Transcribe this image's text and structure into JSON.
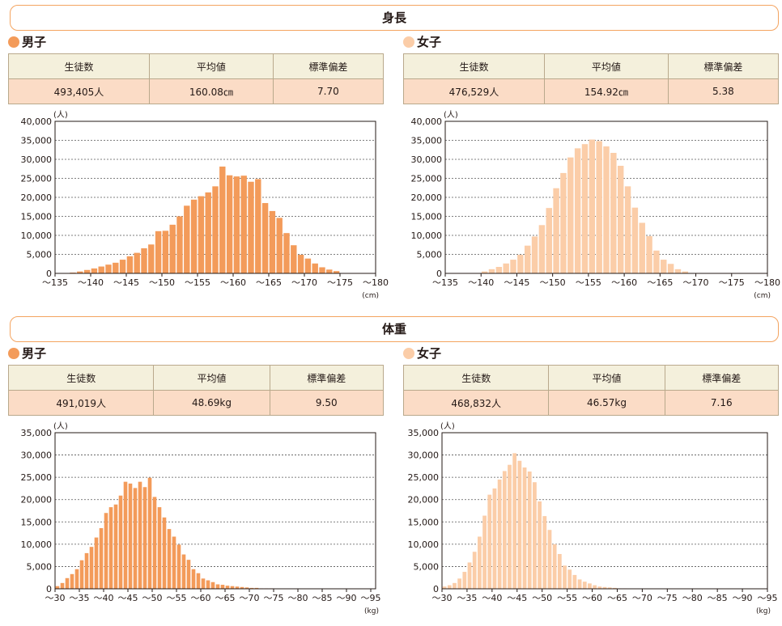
{
  "colors": {
    "male": "#f39b5a",
    "female": "#fbcda8",
    "border": "#f4a460"
  },
  "height_section": {
    "title": "身長"
  },
  "weight_section": {
    "title": "体重"
  },
  "stats_headers": [
    "生徒数",
    "平均値",
    "標準偏差"
  ],
  "height_male": {
    "label": "男子",
    "count": "493,405人",
    "mean": "160.08㎝",
    "sd": "7.70"
  },
  "height_female": {
    "label": "女子",
    "count": "476,529人",
    "mean": "154.92㎝",
    "sd": "5.38"
  },
  "weight_male": {
    "label": "男子",
    "count": "491,019人",
    "mean": "48.69kg",
    "sd": "9.50"
  },
  "weight_female": {
    "label": "女子",
    "count": "468,832人",
    "mean": "46.57kg",
    "sd": "7.16"
  },
  "chart_data": [
    {
      "type": "bar",
      "title": "",
      "ylabel": "(人)",
      "xlabel": "(cm)",
      "x_start": 135,
      "ylim": [
        0,
        40000
      ],
      "yticks": [
        "0",
        "5,000",
        "10,000",
        "15,000",
        "20,000",
        "25,000",
        "30,000",
        "35,000",
        "40,000"
      ],
      "xticks": [
        "～135",
        "～140",
        "～145",
        "～150",
        "～155",
        "～160",
        "～165",
        "～170",
        "～175",
        "～180"
      ],
      "values": [
        0,
        0,
        200,
        500,
        900,
        1300,
        1800,
        2300,
        2800,
        3600,
        4500,
        5400,
        6600,
        7600,
        11100,
        11200,
        12800,
        15000,
        17800,
        19400,
        20300,
        21300,
        22900,
        28100,
        25800,
        25500,
        25700,
        24100,
        24800,
        18500,
        16400,
        14600,
        10600,
        7400,
        4900,
        3900,
        2600,
        1600,
        1000,
        600,
        0,
        0,
        0,
        0,
        0
      ],
      "color": "#f39b5a"
    },
    {
      "type": "bar",
      "title": "",
      "ylabel": "(人)",
      "xlabel": "(cm)",
      "x_start": 135,
      "ylim": [
        0,
        40000
      ],
      "yticks": [
        "0",
        "5,000",
        "10,000",
        "15,000",
        "20,000",
        "25,000",
        "30,000",
        "35,000",
        "40,000"
      ],
      "xticks": [
        "～135",
        "～140",
        "～145",
        "～150",
        "～155",
        "～160",
        "～165",
        "～170",
        "～175",
        "～180"
      ],
      "values": [
        0,
        0,
        0,
        0,
        0,
        500,
        1100,
        1700,
        2600,
        3600,
        4900,
        7300,
        9700,
        12700,
        17200,
        22400,
        26400,
        30500,
        32900,
        34000,
        35200,
        34800,
        33400,
        31700,
        28300,
        22900,
        17300,
        13300,
        9800,
        6000,
        3600,
        2500,
        1100,
        500,
        0,
        0,
        0,
        0,
        0,
        0,
        0,
        0,
        0,
        0,
        0
      ],
      "color": "#fbcda8"
    },
    {
      "type": "bar",
      "title": "",
      "ylabel": "(人)",
      "xlabel": "(kg)",
      "x_start": 30,
      "ylim": [
        0,
        35000
      ],
      "yticks": [
        "0",
        "5,000",
        "10,000",
        "15,000",
        "20,000",
        "25,000",
        "30,000",
        "35,000"
      ],
      "xticks": [
        "～30",
        "～35",
        "～40",
        "～45",
        "～50",
        "～55",
        "～60",
        "～65",
        "～70",
        "～75",
        "～80",
        "～85",
        "～90",
        "～95"
      ],
      "values": [
        600,
        1300,
        2400,
        3300,
        4400,
        6400,
        8000,
        9400,
        11500,
        13600,
        17000,
        18300,
        18900,
        20900,
        24000,
        23600,
        22600,
        24000,
        22800,
        24900,
        20600,
        18300,
        16000,
        13400,
        11700,
        9900,
        7700,
        6500,
        4400,
        3500,
        2300,
        1900,
        1500,
        1000,
        900,
        700,
        600,
        500,
        400,
        300,
        200,
        200,
        100,
        100,
        100,
        0,
        0,
        0,
        0,
        0,
        0,
        0,
        0,
        0,
        0,
        0,
        0,
        0,
        0,
        0,
        0,
        0,
        0,
        0,
        0,
        0
      ],
      "color": "#f39b5a"
    },
    {
      "type": "bar",
      "title": "",
      "ylabel": "(人)",
      "xlabel": "(kg)",
      "x_start": 30,
      "ylim": [
        0,
        35000
      ],
      "yticks": [
        "0",
        "5,000",
        "10,000",
        "15,000",
        "20,000",
        "25,000",
        "30,000",
        "35,000"
      ],
      "xticks": [
        "～30",
        "～35",
        "～40",
        "～45",
        "～50",
        "～55",
        "～60",
        "～65",
        "～70",
        "～75",
        "～80",
        "～85",
        "～90",
        "～95"
      ],
      "values": [
        500,
        800,
        1300,
        2300,
        3800,
        5900,
        8300,
        11700,
        16400,
        21100,
        22500,
        24500,
        26400,
        27800,
        30400,
        28700,
        27200,
        26300,
        23900,
        19600,
        16300,
        13200,
        10000,
        7800,
        5200,
        4300,
        3100,
        2100,
        1600,
        1200,
        800,
        500,
        400,
        300,
        200,
        100,
        100,
        0,
        0,
        0,
        0,
        0,
        0,
        0,
        0,
        0,
        0,
        0,
        0,
        0,
        0,
        0,
        0,
        0,
        0,
        0,
        0,
        0,
        0,
        0,
        0,
        0,
        0,
        0,
        0
      ],
      "color": "#fbcda8"
    }
  ]
}
